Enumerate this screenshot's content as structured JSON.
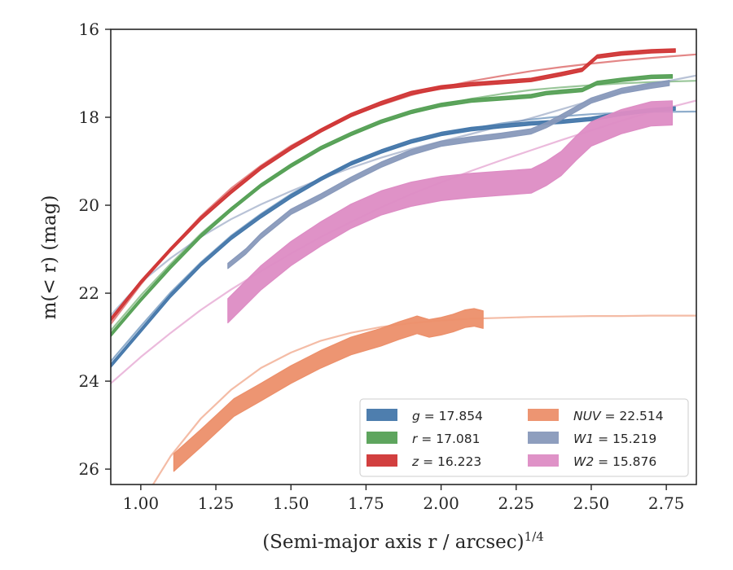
{
  "chart_data": {
    "type": "line",
    "xlabel": "(Semi-major axis r / arcsec)",
    "xlabel_italic": "r",
    "xlabel_power": "1/4",
    "ylabel": "m(< r) (mag)",
    "xlim": [
      0.9,
      2.85
    ],
    "ylim": [
      26.35,
      16.0
    ],
    "y_inverted": true,
    "xticks": [
      1.0,
      1.25,
      1.5,
      1.75,
      2.0,
      2.25,
      2.5,
      2.75
    ],
    "xtick_labels": [
      "1.00",
      "1.25",
      "1.50",
      "1.75",
      "2.00",
      "2.25",
      "2.50",
      "2.75"
    ],
    "yticks": [
      16,
      18,
      20,
      22,
      24,
      26
    ],
    "ytick_labels": [
      "16",
      "18",
      "20",
      "22",
      "24",
      "26"
    ],
    "grid": false,
    "legend_position": "bottom-right",
    "series": [
      {
        "name": "g = 17.854",
        "label_var": "g",
        "label_val": "= 17.854",
        "color": "#4477aa",
        "band": {
          "x": [
            0.9,
            1.0,
            1.1,
            1.2,
            1.3,
            1.4,
            1.5,
            1.6,
            1.7,
            1.8,
            1.9,
            2.0,
            2.1,
            2.2,
            2.3,
            2.4,
            2.5,
            2.6,
            2.7,
            2.78
          ],
          "y": [
            23.65,
            22.85,
            22.05,
            21.35,
            20.75,
            20.25,
            19.8,
            19.4,
            19.05,
            18.78,
            18.55,
            18.38,
            18.27,
            18.2,
            18.14,
            18.1,
            18.04,
            17.92,
            17.84,
            17.8
          ],
          "width": 0.08
        },
        "model": {
          "x": [
            0.9,
            1.0,
            1.1,
            1.2,
            1.3,
            1.4,
            1.5,
            1.6,
            1.7,
            1.8,
            1.9,
            2.0,
            2.1,
            2.2,
            2.3,
            2.4,
            2.5,
            2.6,
            2.7,
            2.85
          ],
          "y": [
            23.55,
            22.75,
            21.98,
            21.3,
            20.7,
            20.2,
            19.75,
            19.38,
            19.05,
            18.8,
            18.58,
            18.4,
            18.26,
            18.14,
            18.05,
            17.98,
            17.93,
            17.9,
            17.88,
            17.87
          ]
        }
      },
      {
        "name": "r = 17.081",
        "label_var": "r",
        "label_val": "= 17.081",
        "color": "#55a055",
        "band": {
          "x": [
            0.9,
            1.0,
            1.1,
            1.2,
            1.3,
            1.4,
            1.5,
            1.6,
            1.7,
            1.8,
            1.9,
            2.0,
            2.1,
            2.2,
            2.3,
            2.35,
            2.4,
            2.47,
            2.52,
            2.6,
            2.7,
            2.77
          ],
          "y": [
            22.95,
            22.15,
            21.4,
            20.7,
            20.1,
            19.55,
            19.1,
            18.7,
            18.38,
            18.1,
            17.88,
            17.72,
            17.62,
            17.57,
            17.52,
            17.45,
            17.42,
            17.38,
            17.22,
            17.15,
            17.08,
            17.07
          ],
          "width": 0.08
        },
        "model": {
          "x": [
            0.9,
            1.0,
            1.1,
            1.2,
            1.3,
            1.4,
            1.5,
            1.6,
            1.7,
            1.8,
            1.9,
            2.0,
            2.1,
            2.2,
            2.3,
            2.4,
            2.5,
            2.6,
            2.7,
            2.85
          ],
          "y": [
            22.85,
            22.05,
            21.33,
            20.65,
            20.07,
            19.55,
            19.1,
            18.72,
            18.4,
            18.12,
            17.9,
            17.72,
            17.58,
            17.47,
            17.38,
            17.32,
            17.27,
            17.23,
            17.2,
            17.17
          ]
        }
      },
      {
        "name": "z = 16.223",
        "label_var": "z",
        "label_val": "= 16.223",
        "color": "#d03535",
        "band": {
          "x": [
            0.9,
            1.0,
            1.1,
            1.2,
            1.3,
            1.4,
            1.5,
            1.6,
            1.7,
            1.8,
            1.9,
            2.0,
            2.1,
            2.2,
            2.3,
            2.4,
            2.47,
            2.52,
            2.6,
            2.7,
            2.78
          ],
          "y": [
            22.6,
            21.75,
            21.0,
            20.3,
            19.7,
            19.15,
            18.7,
            18.3,
            17.95,
            17.68,
            17.45,
            17.32,
            17.25,
            17.2,
            17.15,
            17.02,
            16.92,
            16.62,
            16.55,
            16.5,
            16.48
          ],
          "width": 0.08
        },
        "model": {
          "x": [
            0.9,
            1.0,
            1.1,
            1.2,
            1.3,
            1.4,
            1.5,
            1.6,
            1.7,
            1.8,
            1.9,
            2.0,
            2.1,
            2.2,
            2.3,
            2.4,
            2.5,
            2.6,
            2.7,
            2.85
          ],
          "y": [
            22.7,
            21.8,
            20.98,
            20.25,
            19.62,
            19.1,
            18.65,
            18.28,
            17.97,
            17.72,
            17.5,
            17.32,
            17.18,
            17.06,
            16.95,
            16.86,
            16.78,
            16.71,
            16.65,
            16.57
          ]
        }
      },
      {
        "name": "NUV = 22.514",
        "label_var": "NUV",
        "label_val": "= 22.514",
        "color": "#ec8f6a",
        "band": {
          "x": [
            1.11,
            1.2,
            1.31,
            1.4,
            1.5,
            1.6,
            1.7,
            1.8,
            1.86,
            1.92,
            1.96,
            2.0,
            2.04,
            2.08,
            2.11,
            2.14
          ],
          "y": [
            25.85,
            25.3,
            24.6,
            24.25,
            23.85,
            23.5,
            23.2,
            23.0,
            22.85,
            22.72,
            22.8,
            22.75,
            22.68,
            22.58,
            22.55,
            22.6
          ],
          "width": 0.4
        },
        "model": {
          "x": [
            0.9,
            1.0,
            1.1,
            1.2,
            1.3,
            1.4,
            1.5,
            1.6,
            1.7,
            1.8,
            1.9,
            2.0,
            2.1,
            2.2,
            2.3,
            2.4,
            2.5,
            2.6,
            2.7,
            2.85
          ],
          "y": [
            28.0,
            26.8,
            25.7,
            24.85,
            24.2,
            23.7,
            23.35,
            23.08,
            22.9,
            22.77,
            22.68,
            22.62,
            22.58,
            22.56,
            22.54,
            22.53,
            22.52,
            22.52,
            22.51,
            22.51
          ]
        }
      },
      {
        "name": "W1 = 15.219",
        "label_var": "W1",
        "label_val": "= 15.219",
        "color": "#8899bb",
        "band": {
          "x": [
            1.29,
            1.35,
            1.4,
            1.5,
            1.6,
            1.7,
            1.8,
            1.9,
            2.0,
            2.1,
            2.2,
            2.3,
            2.35,
            2.4,
            2.5,
            2.6,
            2.7,
            2.76
          ],
          "y": [
            21.38,
            21.05,
            20.7,
            20.15,
            19.8,
            19.42,
            19.08,
            18.8,
            18.6,
            18.5,
            18.42,
            18.32,
            18.18,
            18.0,
            17.62,
            17.4,
            17.28,
            17.22
          ],
          "width": 0.12
        },
        "model": {
          "x": [
            0.9,
            1.0,
            1.1,
            1.2,
            1.3,
            1.4,
            1.5,
            1.6,
            1.7,
            1.8,
            1.9,
            2.0,
            2.1,
            2.2,
            2.3,
            2.4,
            2.5,
            2.6,
            2.7,
            2.85
          ],
          "y": [
            22.5,
            21.75,
            21.2,
            20.72,
            20.32,
            19.98,
            19.68,
            19.4,
            19.15,
            18.92,
            18.72,
            18.55,
            18.38,
            18.2,
            18.02,
            17.82,
            17.62,
            17.42,
            17.25,
            17.05
          ]
        }
      },
      {
        "name": "W2 = 15.876",
        "label_var": "W2",
        "label_val": "= 15.876",
        "color": "#dd8cc4",
        "band": {
          "x": [
            1.29,
            1.4,
            1.5,
            1.6,
            1.7,
            1.8,
            1.9,
            2.0,
            2.1,
            2.2,
            2.3,
            2.35,
            2.4,
            2.45,
            2.5,
            2.6,
            2.7,
            2.77
          ],
          "y": [
            22.4,
            21.65,
            21.1,
            20.65,
            20.25,
            19.95,
            19.75,
            19.62,
            19.55,
            19.5,
            19.45,
            19.28,
            19.05,
            18.7,
            18.38,
            18.1,
            17.92,
            17.9
          ],
          "width": 0.55
        },
        "model": {
          "x": [
            0.9,
            1.0,
            1.1,
            1.2,
            1.3,
            1.4,
            1.5,
            1.6,
            1.7,
            1.8,
            1.9,
            2.0,
            2.1,
            2.2,
            2.3,
            2.4,
            2.5,
            2.6,
            2.7,
            2.85
          ],
          "y": [
            24.05,
            23.45,
            22.9,
            22.38,
            21.92,
            21.5,
            21.1,
            20.72,
            20.38,
            20.05,
            19.75,
            19.48,
            19.22,
            18.98,
            18.75,
            18.52,
            18.3,
            18.08,
            17.88,
            17.62
          ]
        }
      }
    ]
  }
}
